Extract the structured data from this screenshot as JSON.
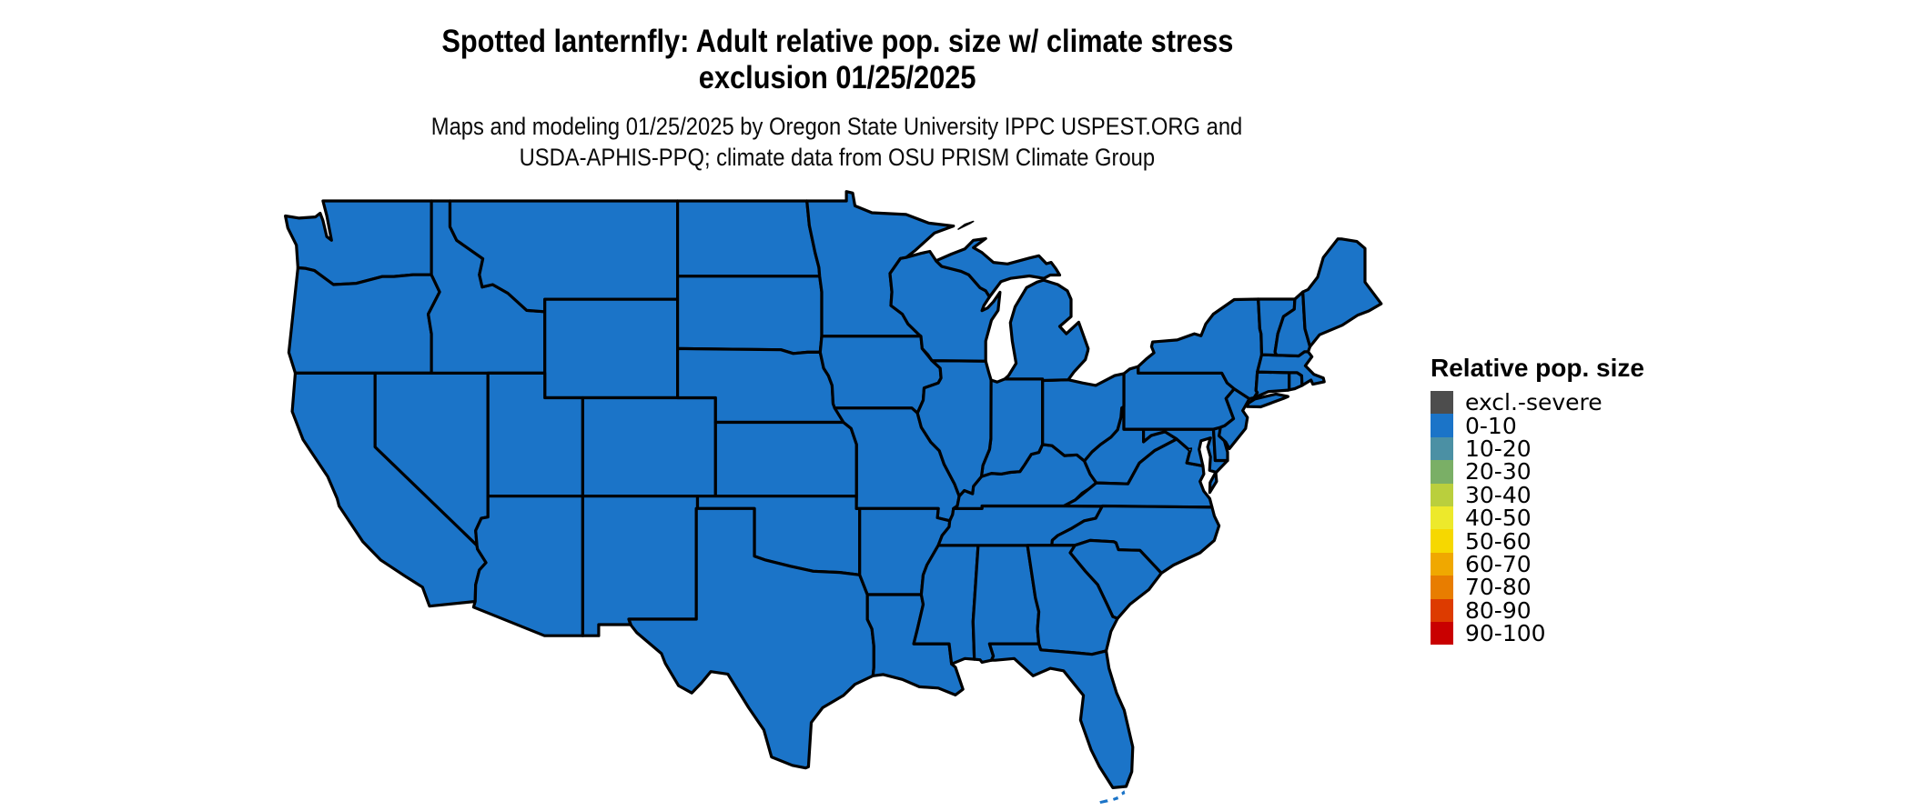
{
  "title": {
    "line1": "Spotted lanternfly: Adult relative pop. size w/ climate stress",
    "line2": "exclusion 01/25/2025"
  },
  "subtitle": {
    "line1": "Maps and modeling 01/25/2025 by Oregon State University IPPC USPEST.ORG and",
    "line2": "USDA-APHIS-PPQ; climate data from OSU PRISM Climate Group"
  },
  "legend": {
    "title": "Relative pop. size",
    "items": [
      {
        "label": "excl.-severe",
        "color": "#4D4D4D"
      },
      {
        "label": "0-10",
        "color": "#1B74C8"
      },
      {
        "label": "10-20",
        "color": "#4B90A4"
      },
      {
        "label": "20-30",
        "color": "#7AAF66"
      },
      {
        "label": "30-40",
        "color": "#BACF3D"
      },
      {
        "label": "40-50",
        "color": "#EDE92B"
      },
      {
        "label": "50-60",
        "color": "#F6D800"
      },
      {
        "label": "60-70",
        "color": "#F0A800"
      },
      {
        "label": "70-80",
        "color": "#E87D00"
      },
      {
        "label": "80-90",
        "color": "#DD3B00"
      },
      {
        "label": "90-100",
        "color": "#C90000"
      }
    ]
  },
  "map": {
    "border_color": "#000000",
    "background": "#FFFFFF",
    "default_class": "0-10"
  },
  "chart_data": {
    "type": "choropleth",
    "title": "Spotted lanternfly: Adult relative pop. size w/ climate stress exclusion 01/25/2025",
    "region_level": "US states (lower 48) and DC",
    "value_classes": [
      "excl.-severe",
      "0-10",
      "10-20",
      "20-30",
      "30-40",
      "40-50",
      "50-60",
      "60-70",
      "70-80",
      "80-90",
      "90-100"
    ],
    "legend_position": "right",
    "regions": {
      "WA": "0-10",
      "OR": "0-10",
      "CA": "0-10",
      "NV": "0-10",
      "ID": "0-10",
      "MT": "0-10",
      "WY": "0-10",
      "UT": "0-10",
      "CO": "0-10",
      "AZ": "0-10",
      "NM": "0-10",
      "ND": "0-10",
      "SD": "0-10",
      "NE": "0-10",
      "KS": "0-10",
      "OK": "0-10",
      "TX": "0-10",
      "MN": "0-10",
      "IA": "0-10",
      "MO": "0-10",
      "AR": "0-10",
      "LA": "0-10",
      "MS": "0-10",
      "AL": "0-10",
      "TN": "0-10",
      "KY": "0-10",
      "WV": "0-10",
      "VA": "0-10",
      "MD": "0-10",
      "DE": "0-10",
      "NJ": "0-10",
      "PA": "0-10",
      "NY": "0-10",
      "CT": "0-10",
      "RI": "0-10",
      "MA": "0-10",
      "VT": "0-10",
      "NH": "0-10",
      "ME": "0-10",
      "OH": "0-10",
      "IN": "0-10",
      "IL": "0-10",
      "WI": "0-10",
      "MI": "0-10",
      "GA": "0-10",
      "FL": "0-10",
      "SC": "0-10",
      "NC": "0-10",
      "DC": "0-10"
    }
  }
}
